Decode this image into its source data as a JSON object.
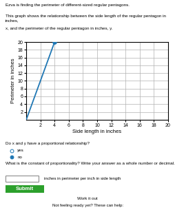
{
  "chart_data": {
    "type": "line",
    "xlabel": "Side length in inches",
    "ylabel": "Perimeter in inches",
    "xlim": [
      0,
      20
    ],
    "ylim": [
      0,
      20
    ],
    "xticks": [
      2,
      4,
      6,
      8,
      10,
      12,
      14,
      16,
      18,
      20
    ],
    "yticks": [
      2,
      4,
      6,
      8,
      10,
      12,
      14,
      16,
      18,
      20
    ],
    "grid": true,
    "series": [
      {
        "type": "line",
        "x": [
          0,
          4
        ],
        "values": [
          0,
          20
        ]
      },
      {
        "type": "scatter",
        "x": [
          4
        ],
        "values": [
          20
        ]
      }
    ],
    "annotations": [
      "Ezva is finding the perimeter of different-sized regular pentagons.",
      "This graph shows the relationship between the side length of the regular pentagon in inches,",
      "x, and the perimeter of the regular pentagon in inches, y.",
      "Do x and y have a proportional relationship?",
      "yes",
      "no",
      "What is the constant of proportionality? Write your answer as a whole number or decimal.",
      "inches in perimeter per inch in side length",
      "Submit",
      "Work it out",
      "Not feeling ready yet? These can help:"
    ]
  }
}
